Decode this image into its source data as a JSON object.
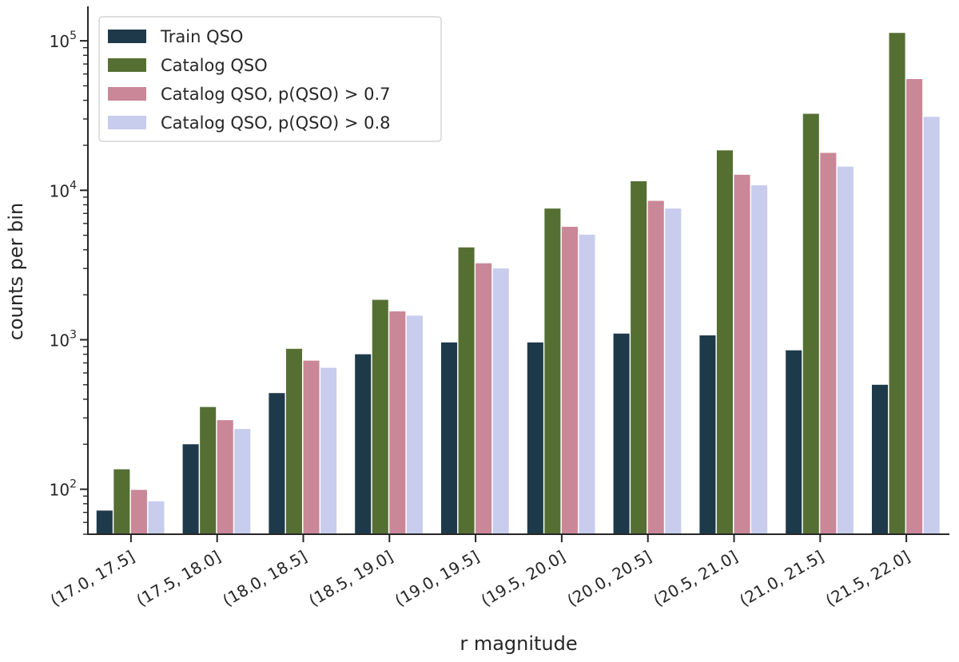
{
  "chart_data": {
    "type": "bar",
    "title": "",
    "xlabel": "r magnitude",
    "ylabel": "counts per bin",
    "yscale": "log",
    "ylim": [
      50,
      170000
    ],
    "grid": false,
    "legend_position": "top-left",
    "categories": [
      "(17.0, 17.5]",
      "(17.5, 18.0]",
      "(18.0, 18.5]",
      "(18.5, 19.0]",
      "(19.0, 19.5]",
      "(19.5, 20.0]",
      "(20.0, 20.5]",
      "(20.5, 21.0]",
      "(21.0, 21.5]",
      "(21.5, 22.0]"
    ],
    "yticks": [
      {
        "value": 100,
        "base": "10",
        "exp": "2"
      },
      {
        "value": 1000,
        "base": "10",
        "exp": "3"
      },
      {
        "value": 10000,
        "base": "10",
        "exp": "4"
      },
      {
        "value": 100000,
        "base": "10",
        "exp": "5"
      }
    ],
    "series": [
      {
        "name": "Train QSO",
        "color": "#1e3a4a",
        "values": [
          72,
          200,
          440,
          800,
          960,
          960,
          1100,
          1070,
          850,
          500
        ]
      },
      {
        "name": "Catalog QSO",
        "color": "#556f33",
        "values": [
          136,
          355,
          870,
          1850,
          4150,
          7550,
          11500,
          18500,
          32500,
          113000
        ]
      },
      {
        "name": "Catalog QSO, p(QSO) > 0.7",
        "color": "#c98797",
        "values": [
          99,
          290,
          725,
          1550,
          3250,
          5700,
          8500,
          12700,
          17800,
          55500
        ]
      },
      {
        "name": "Catalog QSO, p(QSO) > 0.8",
        "color": "#c8cced",
        "values": [
          83,
          253,
          650,
          1450,
          3000,
          5050,
          7550,
          10800,
          14400,
          31000
        ]
      }
    ]
  }
}
